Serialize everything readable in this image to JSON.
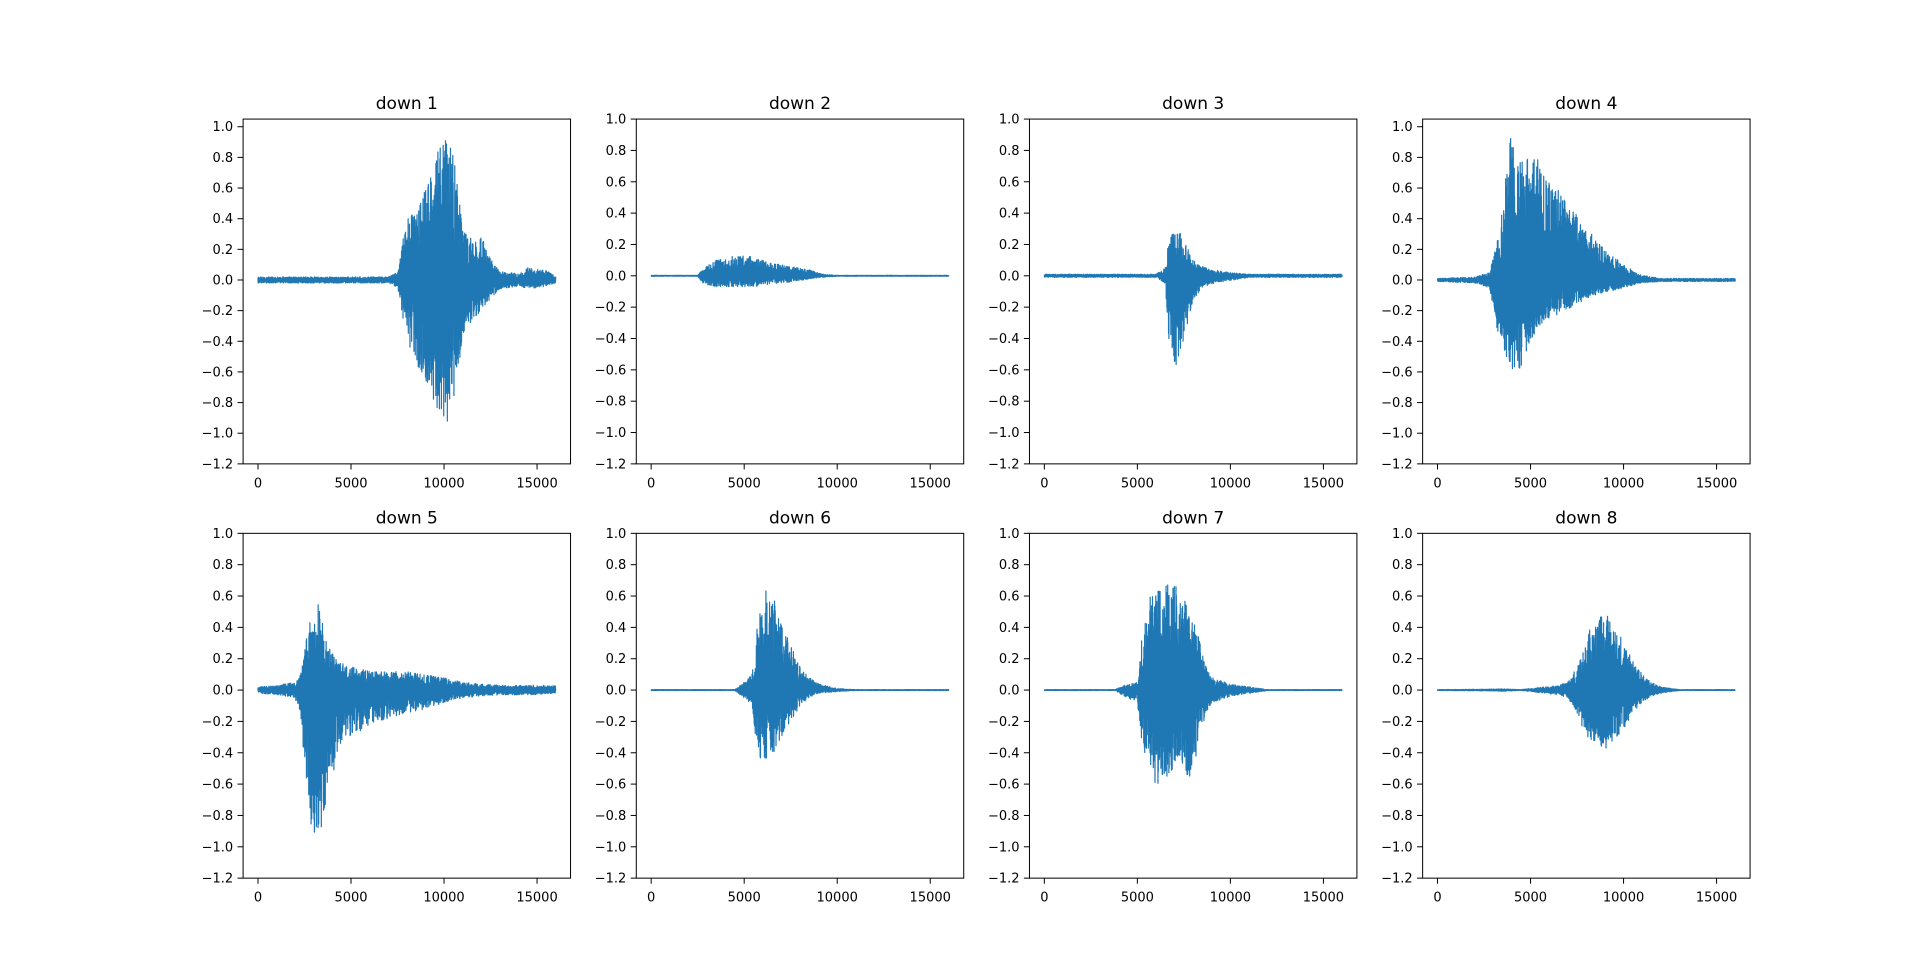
{
  "chart_data": [
    {
      "type": "line",
      "title": "down 1",
      "xlim": [
        -800,
        16800
      ],
      "ylim": [
        -1.2,
        1.05
      ],
      "xticks": [
        0,
        5000,
        10000,
        15000
      ],
      "xtick_labels": [
        "0",
        "5000",
        "10000",
        "15000"
      ],
      "yticks": [
        -1.2,
        -1.0,
        -0.8,
        -0.6,
        -0.4,
        -0.2,
        0.0,
        0.2,
        0.4,
        0.6,
        0.8,
        1.0
      ],
      "ytick_labels": [
        "−1.2",
        "−1.0",
        "−0.8",
        "−0.6",
        "−0.4",
        "−0.2",
        "0.0",
        "0.2",
        "0.4",
        "0.6",
        "0.8",
        "1.0"
      ],
      "color": "#1f77b4",
      "series": [
        {
          "envelope": {
            "x": [
              0,
              1500,
              3000,
              5000,
              7000,
              7500,
              7700,
              8000,
              8500,
              9000,
              9500,
              9800,
              10000,
              10300,
              10700,
              11000,
              11300,
              11700,
              12000,
              12300,
              12700,
              13000,
              13500,
              14000,
              14500,
              15000,
              15500,
              16000
            ],
            "upper": [
              0.02,
              0.02,
              0.02,
              0.02,
              0.02,
              0.05,
              0.2,
              0.4,
              0.45,
              0.6,
              0.75,
              0.9,
              0.95,
              0.93,
              0.7,
              0.35,
              0.3,
              0.25,
              0.3,
              0.2,
              0.1,
              0.06,
              0.05,
              0.04,
              0.08,
              0.07,
              0.06,
              0.03
            ],
            "lower": [
              -0.02,
              -0.02,
              -0.02,
              -0.02,
              -0.02,
              -0.05,
              -0.2,
              -0.4,
              -0.55,
              -0.65,
              -0.8,
              -0.97,
              -0.98,
              -0.95,
              -0.7,
              -0.35,
              -0.3,
              -0.25,
              -0.2,
              -0.15,
              -0.1,
              -0.06,
              -0.05,
              -0.04,
              -0.06,
              -0.05,
              -0.04,
              -0.02
            ]
          }
        }
      ]
    },
    {
      "type": "line",
      "title": "down 2",
      "xlim": [
        -800,
        16800
      ],
      "ylim": [
        -1.2,
        1.0
      ],
      "xticks": [
        0,
        5000,
        10000,
        15000
      ],
      "xtick_labels": [
        "0",
        "5000",
        "10000",
        "15000"
      ],
      "yticks": [
        -1.2,
        -1.0,
        -0.8,
        -0.6,
        -0.4,
        -0.2,
        0.0,
        0.2,
        0.4,
        0.6,
        0.8,
        1.0
      ],
      "ytick_labels": [
        "−1.2",
        "−1.0",
        "−0.8",
        "−0.6",
        "−0.4",
        "−0.2",
        "0.0",
        "0.2",
        "0.4",
        "0.6",
        "0.8",
        "1.0"
      ],
      "color": "#1f77b4",
      "series": [
        {
          "envelope": {
            "x": [
              0,
              2500,
              2800,
              3500,
              4500,
              5500,
              6500,
              7500,
              8500,
              9200,
              10000,
              16000
            ],
            "upper": [
              0.003,
              0.003,
              0.05,
              0.1,
              0.13,
              0.12,
              0.08,
              0.06,
              0.04,
              0.01,
              0.003,
              0.003
            ],
            "lower": [
              -0.003,
              -0.003,
              -0.05,
              -0.07,
              -0.07,
              -0.07,
              -0.05,
              -0.04,
              -0.02,
              -0.01,
              -0.003,
              -0.003
            ]
          }
        }
      ]
    },
    {
      "type": "line",
      "title": "down 3",
      "xlim": [
        -800,
        16800
      ],
      "ylim": [
        -1.2,
        1.0
      ],
      "xticks": [
        0,
        5000,
        10000,
        15000
      ],
      "xtick_labels": [
        "0",
        "5000",
        "10000",
        "15000"
      ],
      "yticks": [
        -1.2,
        -1.0,
        -0.8,
        -0.6,
        -0.4,
        -0.2,
        0.0,
        0.2,
        0.4,
        0.6,
        0.8,
        1.0
      ],
      "ytick_labels": [
        "−1.2",
        "−1.0",
        "−0.8",
        "−0.6",
        "−0.4",
        "−0.2",
        "0.0",
        "0.2",
        "0.4",
        "0.6",
        "0.8",
        "1.0"
      ],
      "color": "#1f77b4",
      "series": [
        {
          "envelope": {
            "x": [
              0,
              2000,
              3000,
              6000,
              6500,
              6700,
              7000,
              7300,
              7600,
              8000,
              8500,
              9000,
              10000,
              11000,
              16000
            ],
            "upper": [
              0.01,
              0.01,
              0.01,
              0.01,
              0.05,
              0.25,
              0.33,
              0.3,
              0.2,
              0.1,
              0.06,
              0.04,
              0.02,
              0.01,
              0.01
            ],
            "lower": [
              -0.01,
              -0.01,
              -0.01,
              -0.01,
              -0.05,
              -0.45,
              -0.6,
              -0.5,
              -0.35,
              -0.15,
              -0.08,
              -0.05,
              -0.03,
              -0.01,
              -0.01
            ]
          }
        }
      ]
    },
    {
      "type": "line",
      "title": "down 4",
      "xlim": [
        -800,
        16800
      ],
      "ylim": [
        -1.2,
        1.05
      ],
      "xticks": [
        0,
        5000,
        10000,
        15000
      ],
      "xtick_labels": [
        "0",
        "5000",
        "10000",
        "15000"
      ],
      "yticks": [
        -1.2,
        -1.0,
        -0.8,
        -0.6,
        -0.4,
        -0.2,
        0.0,
        0.2,
        0.4,
        0.6,
        0.8,
        1.0
      ],
      "ytick_labels": [
        "−1.2",
        "−1.0",
        "−0.8",
        "−0.6",
        "−0.4",
        "−0.2",
        "0.0",
        "0.2",
        "0.4",
        "0.6",
        "0.8",
        "1.0"
      ],
      "color": "#1f77b4",
      "series": [
        {
          "envelope": {
            "x": [
              0,
              2000,
              2800,
              3300,
              3700,
              3900,
              4200,
              4600,
              5000,
              5500,
              6000,
              7000,
              8000,
              9000,
              10000,
              11000,
              12000,
              16000
            ],
            "upper": [
              0.01,
              0.02,
              0.05,
              0.3,
              0.75,
              1.0,
              0.8,
              0.8,
              0.8,
              0.78,
              0.65,
              0.52,
              0.35,
              0.2,
              0.1,
              0.03,
              0.01,
              0.01
            ],
            "lower": [
              -0.01,
              -0.02,
              -0.05,
              -0.4,
              -0.55,
              -0.6,
              -0.62,
              -0.55,
              -0.4,
              -0.3,
              -0.25,
              -0.2,
              -0.12,
              -0.08,
              -0.05,
              -0.02,
              -0.01,
              -0.01
            ]
          }
        }
      ]
    },
    {
      "type": "line",
      "title": "down 5",
      "xlim": [
        -800,
        16800
      ],
      "ylim": [
        -1.2,
        1.0
      ],
      "xticks": [
        0,
        5000,
        10000,
        15000
      ],
      "xtick_labels": [
        "0",
        "5000",
        "10000",
        "15000"
      ],
      "yticks": [
        -1.2,
        -1.0,
        -0.8,
        -0.6,
        -0.4,
        -0.2,
        0.0,
        0.2,
        0.4,
        0.6,
        0.8,
        1.0
      ],
      "ytick_labels": [
        "−1.2",
        "−1.0",
        "−0.8",
        "−0.6",
        "−0.4",
        "−0.2",
        "0.0",
        "0.2",
        "0.4",
        "0.6",
        "0.8",
        "1.0"
      ],
      "color": "#1f77b4",
      "series": [
        {
          "envelope": {
            "x": [
              0,
              1000,
              2000,
              2300,
              2700,
              3000,
              3300,
              3700,
              4300,
              5000,
              6000,
              7000,
              8000,
              9000,
              10000,
              11000,
              12000,
              13000,
              14000,
              15000,
              16000
            ],
            "upper": [
              0.02,
              0.03,
              0.05,
              0.1,
              0.4,
              0.5,
              0.56,
              0.3,
              0.18,
              0.15,
              0.12,
              0.12,
              0.12,
              0.1,
              0.08,
              0.05,
              0.04,
              0.03,
              0.03,
              0.03,
              0.03
            ],
            "lower": [
              -0.02,
              -0.03,
              -0.05,
              -0.2,
              -0.8,
              -0.95,
              -1.0,
              -0.7,
              -0.4,
              -0.3,
              -0.22,
              -0.18,
              -0.15,
              -0.12,
              -0.08,
              -0.05,
              -0.04,
              -0.03,
              -0.03,
              -0.03,
              -0.02
            ]
          }
        }
      ]
    },
    {
      "type": "line",
      "title": "down 6",
      "xlim": [
        -800,
        16800
      ],
      "ylim": [
        -1.2,
        1.0
      ],
      "xticks": [
        0,
        5000,
        10000,
        15000
      ],
      "xtick_labels": [
        "0",
        "5000",
        "10000",
        "15000"
      ],
      "yticks": [
        -1.2,
        -1.0,
        -0.8,
        -0.6,
        -0.4,
        -0.2,
        0.0,
        0.2,
        0.4,
        0.6,
        0.8,
        1.0
      ],
      "ytick_labels": [
        "−1.2",
        "−1.0",
        "−0.8",
        "−0.6",
        "−0.4",
        "−0.2",
        "0.0",
        "0.2",
        "0.4",
        "0.6",
        "0.8",
        "1.0"
      ],
      "color": "#1f77b4",
      "series": [
        {
          "envelope": {
            "x": [
              0,
              4500,
              5000,
              5400,
              5700,
              6000,
              6200,
              6600,
              7000,
              7500,
              8000,
              8500,
              9000,
              10000,
              11000,
              16000
            ],
            "upper": [
              0.003,
              0.003,
              0.05,
              0.1,
              0.4,
              0.6,
              0.7,
              0.6,
              0.45,
              0.3,
              0.15,
              0.08,
              0.04,
              0.01,
              0.003,
              0.003
            ],
            "lower": [
              -0.003,
              -0.003,
              -0.05,
              -0.1,
              -0.4,
              -0.46,
              -0.45,
              -0.4,
              -0.3,
              -0.2,
              -0.1,
              -0.05,
              -0.02,
              -0.01,
              -0.003,
              -0.003
            ]
          }
        }
      ]
    },
    {
      "type": "line",
      "title": "down 7",
      "xlim": [
        -800,
        16800
      ],
      "ylim": [
        -1.2,
        1.0
      ],
      "xticks": [
        0,
        5000,
        10000,
        15000
      ],
      "xtick_labels": [
        "0",
        "5000",
        "10000",
        "15000"
      ],
      "yticks": [
        -1.2,
        -1.0,
        -0.8,
        -0.6,
        -0.4,
        -0.2,
        0.0,
        0.2,
        0.4,
        0.6,
        0.8,
        1.0
      ],
      "ytick_labels": [
        "−1.2",
        "−1.0",
        "−0.8",
        "−0.6",
        "−0.4",
        "−0.2",
        "0.0",
        "0.2",
        "0.4",
        "0.6",
        "0.8",
        "1.0"
      ],
      "color": "#1f77b4",
      "series": [
        {
          "envelope": {
            "x": [
              0,
              3800,
              4300,
              5000,
              5300,
              5700,
              6000,
              6500,
              7000,
              7500,
              8000,
              8300,
              8700,
              9000,
              10000,
              11000,
              12000,
              16000
            ],
            "upper": [
              0.003,
              0.003,
              0.03,
              0.05,
              0.4,
              0.6,
              0.68,
              0.7,
              0.68,
              0.6,
              0.45,
              0.35,
              0.15,
              0.08,
              0.04,
              0.02,
              0.003,
              0.003
            ],
            "lower": [
              -0.003,
              -0.003,
              -0.04,
              -0.08,
              -0.4,
              -0.55,
              -0.6,
              -0.58,
              -0.5,
              -0.55,
              -0.55,
              -0.3,
              -0.15,
              -0.08,
              -0.04,
              -0.02,
              -0.003,
              -0.003
            ]
          }
        }
      ]
    },
    {
      "type": "line",
      "title": "down 8",
      "xlim": [
        -800,
        16800
      ],
      "ylim": [
        -1.2,
        1.0
      ],
      "xticks": [
        0,
        5000,
        10000,
        15000
      ],
      "xtick_labels": [
        "0",
        "5000",
        "10000",
        "15000"
      ],
      "yticks": [
        -1.2,
        -1.0,
        -0.8,
        -0.6,
        -0.4,
        -0.2,
        0.0,
        0.2,
        0.4,
        0.6,
        0.8,
        1.0
      ],
      "ytick_labels": [
        "−1.2",
        "−1.0",
        "−0.8",
        "−0.6",
        "−0.4",
        "−0.2",
        "0.0",
        "0.2",
        "0.4",
        "0.6",
        "0.8",
        "1.0"
      ],
      "color": "#1f77b4",
      "series": [
        {
          "envelope": {
            "x": [
              0,
              2500,
              3500,
              4500,
              6500,
              7000,
              7500,
              8000,
              8500,
              9000,
              9500,
              10000,
              10500,
              11000,
              11500,
              12000,
              13000,
              16000
            ],
            "upper": [
              0.003,
              0.005,
              0.008,
              0.003,
              0.03,
              0.05,
              0.15,
              0.35,
              0.45,
              0.48,
              0.45,
              0.35,
              0.2,
              0.1,
              0.05,
              0.02,
              0.003,
              0.003
            ],
            "lower": [
              -0.003,
              -0.005,
              -0.008,
              -0.003,
              -0.03,
              -0.05,
              -0.15,
              -0.3,
              -0.36,
              -0.38,
              -0.32,
              -0.25,
              -0.15,
              -0.08,
              -0.04,
              -0.02,
              -0.003,
              -0.003
            ]
          }
        }
      ]
    }
  ]
}
